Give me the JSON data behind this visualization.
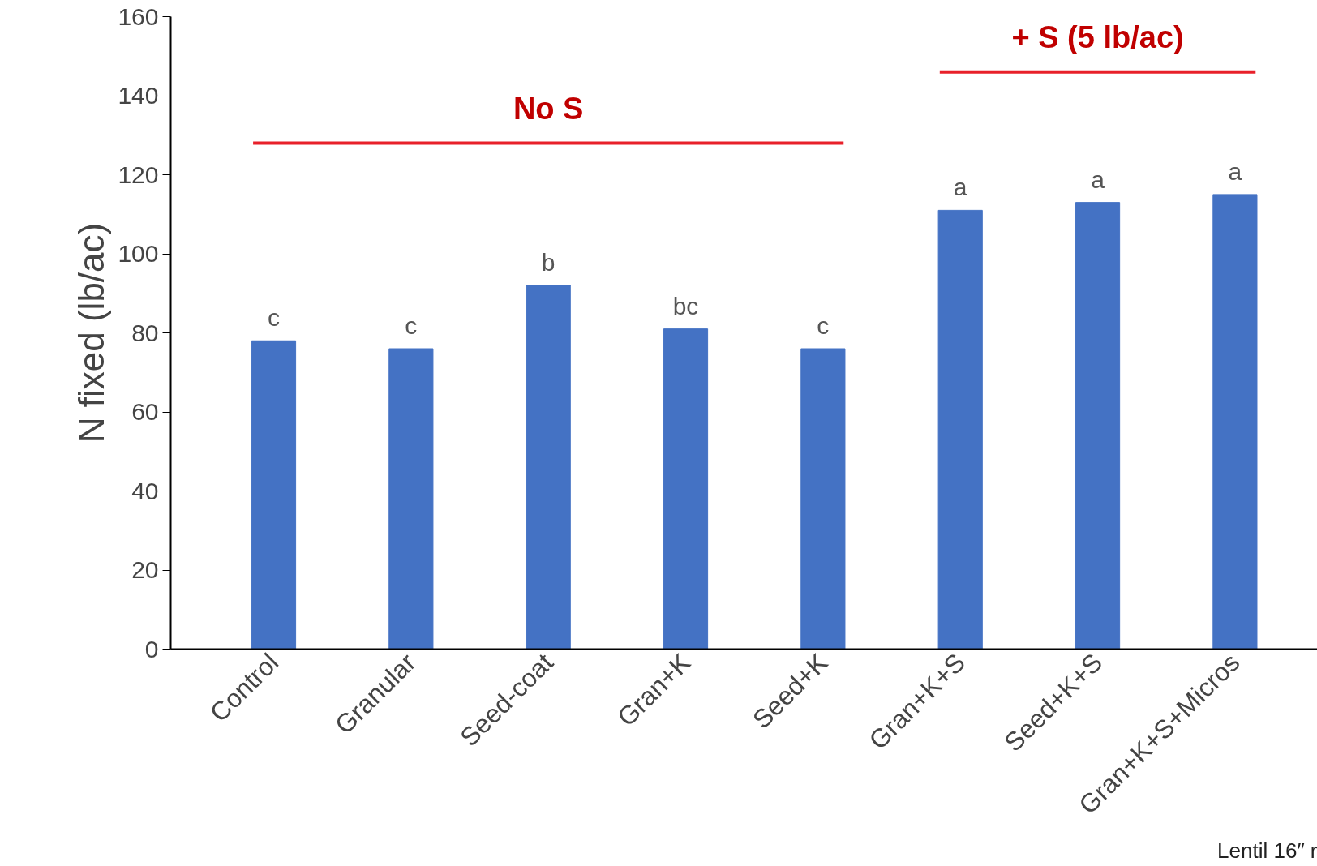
{
  "chart_data": {
    "type": "bar",
    "ylabel": "N fixed (lb/ac)",
    "categories": [
      "Control",
      "Granular",
      "Seed-coat",
      "Gran+K",
      "Seed+K",
      "Gran+K+S",
      "Seed+K+S",
      "Gran+K+S+Micros"
    ],
    "values": [
      78,
      76,
      92,
      81,
      76,
      111,
      113,
      115
    ],
    "color": "#4472c4",
    "value_labels": [
      "c",
      "c",
      "b",
      "bc",
      "c",
      "a",
      "a",
      "a"
    ],
    "ylim": [
      0,
      160
    ],
    "yticks": [
      0,
      20,
      40,
      60,
      80,
      100,
      120,
      140,
      160
    ],
    "ref_lines": [
      {
        "axis": "y",
        "value": 128,
        "label": "No S",
        "color": "#e8202a"
      },
      {
        "axis": "y",
        "value": 146,
        "label": "+ S (5 lb/ac)",
        "color": "#e8202a"
      }
    ],
    "annotations": [
      "Lentil 16″ r"
    ],
    "grid": false
  }
}
